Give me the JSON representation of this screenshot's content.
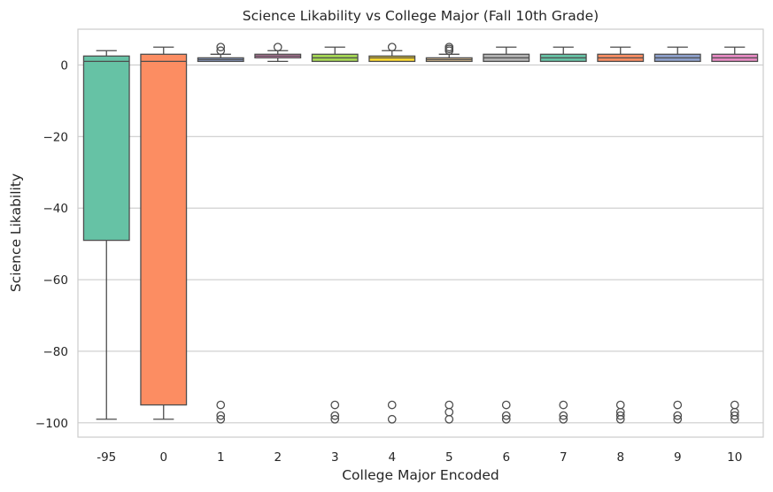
{
  "chart_data": {
    "type": "box",
    "title": "Science Likability vs College Major (Fall 10th Grade)",
    "xlabel": "College Major Encoded",
    "ylabel": "Science Likability",
    "ylim": [
      -104,
      10
    ],
    "yticks": [
      0,
      -20,
      -40,
      -60,
      -80,
      -100
    ],
    "ytick_labels": [
      "0",
      "−20",
      "−40",
      "−60",
      "−80",
      "−100"
    ],
    "grid": "horizontal",
    "categories": [
      "-95",
      "0",
      "1",
      "2",
      "3",
      "4",
      "5",
      "6",
      "7",
      "8",
      "9",
      "10"
    ],
    "boxes": [
      {
        "category": "-95",
        "q1": -49,
        "median": 1,
        "q3": 2.5,
        "whisker_low": -99,
        "whisker_high": 4,
        "outliers": [],
        "color": "#66c2a5"
      },
      {
        "category": "0",
        "q1": -95,
        "median": 1,
        "q3": 3,
        "whisker_low": -99,
        "whisker_high": 5,
        "outliers": [],
        "color": "#fc8d62"
      },
      {
        "category": "1",
        "q1": 1,
        "median": 1.5,
        "q3": 2,
        "whisker_low": 1,
        "whisker_high": 3,
        "outliers": [
          4,
          5,
          -95,
          -98,
          -99
        ],
        "color": "#8da0cb"
      },
      {
        "category": "2",
        "q1": 2,
        "median": 2.5,
        "q3": 3,
        "whisker_low": 1,
        "whisker_high": 4,
        "outliers": [
          5
        ],
        "color": "#e78ac3"
      },
      {
        "category": "3",
        "q1": 1,
        "median": 2,
        "q3": 3,
        "whisker_low": 1,
        "whisker_high": 5,
        "outliers": [
          -95,
          -98,
          -99
        ],
        "color": "#a6d854"
      },
      {
        "category": "4",
        "q1": 1,
        "median": 2,
        "q3": 2.5,
        "whisker_low": 1,
        "whisker_high": 4,
        "outliers": [
          5,
          -95,
          -99
        ],
        "color": "#ffd92f"
      },
      {
        "category": "5",
        "q1": 1,
        "median": 1.5,
        "q3": 2,
        "whisker_low": 1,
        "whisker_high": 3,
        "outliers": [
          4,
          4.5,
          5,
          -95,
          -97,
          -99
        ],
        "color": "#e5c494"
      },
      {
        "category": "6",
        "q1": 1,
        "median": 2,
        "q3": 3,
        "whisker_low": 1,
        "whisker_high": 5,
        "outliers": [
          -95,
          -98,
          -99
        ],
        "color": "#b3b3b3"
      },
      {
        "category": "7",
        "q1": 1,
        "median": 2,
        "q3": 3,
        "whisker_low": 1,
        "whisker_high": 5,
        "outliers": [
          -95,
          -98,
          -99
        ],
        "color": "#66c2a5"
      },
      {
        "category": "8",
        "q1": 1,
        "median": 2,
        "q3": 3,
        "whisker_low": 1,
        "whisker_high": 5,
        "outliers": [
          -95,
          -97,
          -98,
          -99
        ],
        "color": "#fc8d62"
      },
      {
        "category": "9",
        "q1": 1,
        "median": 2,
        "q3": 3,
        "whisker_low": 1,
        "whisker_high": 5,
        "outliers": [
          -95,
          -98,
          -99
        ],
        "color": "#8da0cb"
      },
      {
        "category": "10",
        "q1": 1,
        "median": 2,
        "q3": 3,
        "whisker_low": 1,
        "whisker_high": 5,
        "outliers": [
          -95,
          -97,
          -98,
          -99
        ],
        "color": "#e78ac3"
      }
    ]
  }
}
